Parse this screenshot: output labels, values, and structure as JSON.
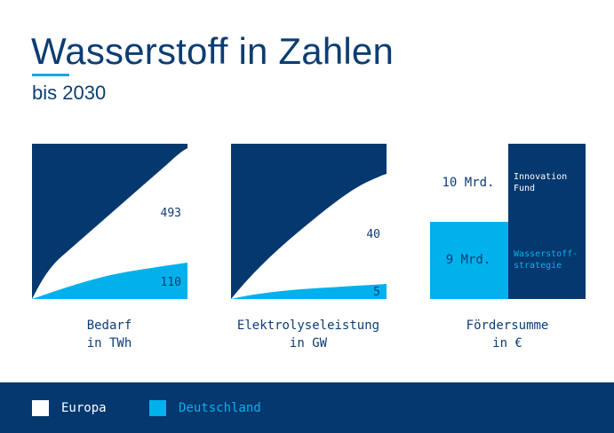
{
  "header": {
    "title": "Wasserstoff in Zahlen",
    "subtitle": "bis 2030"
  },
  "colors": {
    "europa": "#ffffff",
    "deutschland": "#00b1eb",
    "background_dark": "#04386e",
    "text": "#0d3d73"
  },
  "chart_data": [
    {
      "type": "area",
      "caption": [
        "Bedarf",
        "in TWh"
      ],
      "series": [
        {
          "name": "Europa",
          "value": 493,
          "label": "493"
        },
        {
          "name": "Deutschland",
          "value": 110,
          "label": "110"
        }
      ]
    },
    {
      "type": "area",
      "caption": [
        "Elektrolyseleistung",
        "in GW"
      ],
      "series": [
        {
          "name": "Europa",
          "value": 40,
          "label": "40"
        },
        {
          "name": "Deutschland",
          "value": 5,
          "label": "5"
        }
      ]
    },
    {
      "type": "bar",
      "caption": [
        "Fördersumme",
        "in €"
      ],
      "series": [
        {
          "name": "Innovation Fund",
          "value": 10,
          "label": "10 Mrd.",
          "tag": [
            "Innovation",
            "Fund"
          ]
        },
        {
          "name": "Wasserstoffstrategie",
          "value": 9,
          "label": "9 Mrd.",
          "tag": [
            "Wasserstoff-",
            "strategie"
          ]
        }
      ]
    }
  ],
  "legend": [
    {
      "name": "Europa",
      "color": "#ffffff",
      "text_color": "#ffffff"
    },
    {
      "name": "Deutschland",
      "color": "#00b1eb",
      "text_color": "#00b1eb"
    }
  ]
}
